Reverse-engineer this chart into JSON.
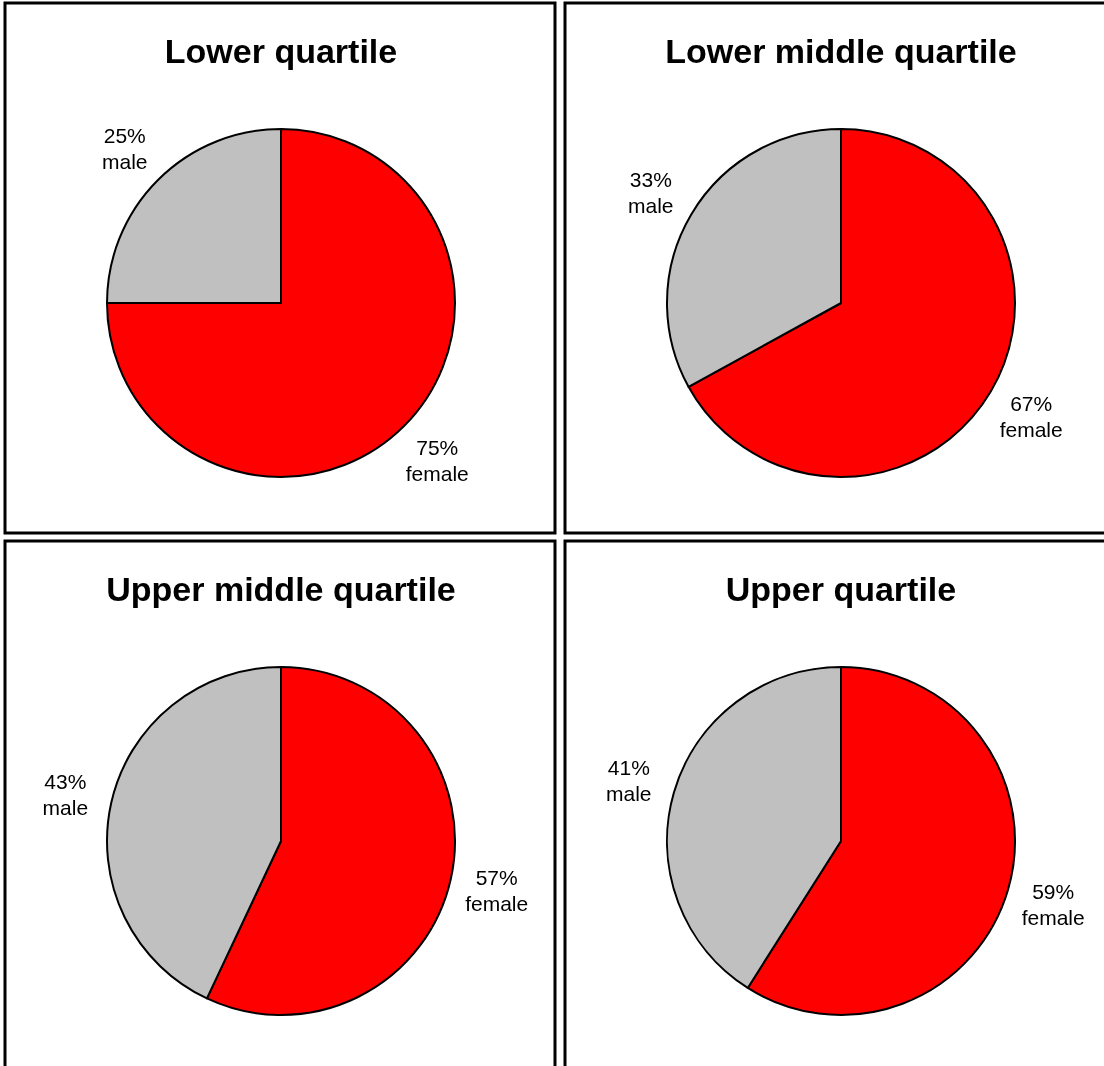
{
  "chart_data": [
    {
      "type": "pie",
      "title": "Lower quartile",
      "categories": [
        "female",
        "male"
      ],
      "values": [
        75,
        25
      ],
      "value_labels": [
        "75%",
        "25%"
      ],
      "colors": [
        "#ff0000",
        "#c0c0c0"
      ]
    },
    {
      "type": "pie",
      "title": "Lower middle quartile",
      "categories": [
        "female",
        "male"
      ],
      "values": [
        67,
        33
      ],
      "value_labels": [
        "67%",
        "33%"
      ],
      "colors": [
        "#ff0000",
        "#c0c0c0"
      ]
    },
    {
      "type": "pie",
      "title": "Upper middle quartile",
      "categories": [
        "female",
        "male"
      ],
      "values": [
        57,
        43
      ],
      "value_labels": [
        "57%",
        "43%"
      ],
      "colors": [
        "#ff0000",
        "#c0c0c0"
      ]
    },
    {
      "type": "pie",
      "title": "Upper quartile",
      "categories": [
        "female",
        "male"
      ],
      "values": [
        59,
        41
      ],
      "value_labels": [
        "59%",
        "41%"
      ],
      "colors": [
        "#ff0000",
        "#c0c0c0"
      ]
    }
  ]
}
